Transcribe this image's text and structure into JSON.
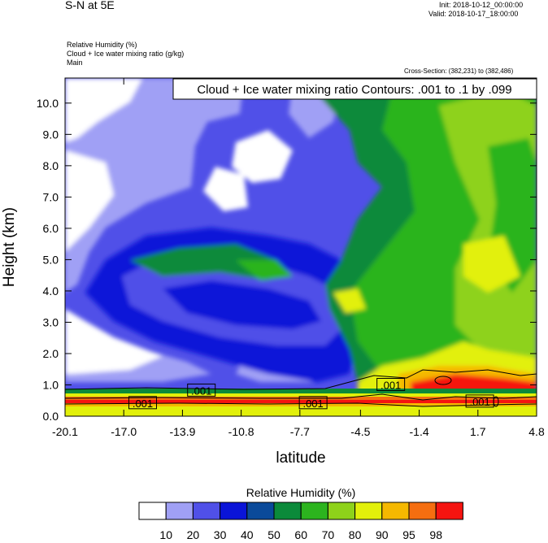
{
  "header": {
    "title": "S-N at 5E",
    "init": "Init: 2018-10-12_00:00:00",
    "valid": "Valid: 2018-10-17_18:00:00",
    "field1": "Relative Humidity   (%)",
    "field2": "Cloud + Ice water mixing ratio   (g/kg)",
    "field3": "Main",
    "cross_section": "Cross-Section: (382,231) to (382,486)"
  },
  "chart_data": {
    "type": "heatmap",
    "title": "Cloud + Ice water mixing ratio Contours: .001 to .1 by .099",
    "xlabel": "latitude",
    "ylabel": "Height (km)",
    "xlim": [
      -20.1,
      4.8
    ],
    "ylim": [
      0.0,
      10.8
    ],
    "x_ticks": [
      "-20.1",
      "-17.0",
      "-13.9",
      "-10.8",
      "-7.7",
      "-4.5",
      "-1.4",
      "1.7",
      "4.8"
    ],
    "y_ticks": [
      "0.0",
      "1.0",
      "2.0",
      "3.0",
      "4.0",
      "5.0",
      "6.0",
      "7.0",
      "8.0",
      "9.0",
      "10.0"
    ],
    "contour_labels": [
      {
        "text": ".001",
        "lat": -16.0,
        "height": 0.42
      },
      {
        "text": ".001",
        "lat": -12.9,
        "height": 0.82
      },
      {
        "text": ".001",
        "lat": -7.0,
        "height": 0.42
      },
      {
        "text": ".001",
        "lat": -2.9,
        "height": 1.0
      },
      {
        "text": ".001",
        "lat": 1.8,
        "height": 0.47
      }
    ],
    "colorbar": {
      "title": "Relative Humidity  (%)",
      "levels": [
        "10",
        "20",
        "30",
        "40",
        "50",
        "60",
        "70",
        "80",
        "90",
        "95",
        "98"
      ],
      "colors": [
        "#ffffff",
        "#a0a0f5",
        "#5050e8",
        "#0a14d8",
        "#0a4a9a",
        "#0b8a3a",
        "#2cb41e",
        "#8ed21a",
        "#e2f00a",
        "#f5b800",
        "#f56e10",
        "#f51410"
      ]
    }
  }
}
